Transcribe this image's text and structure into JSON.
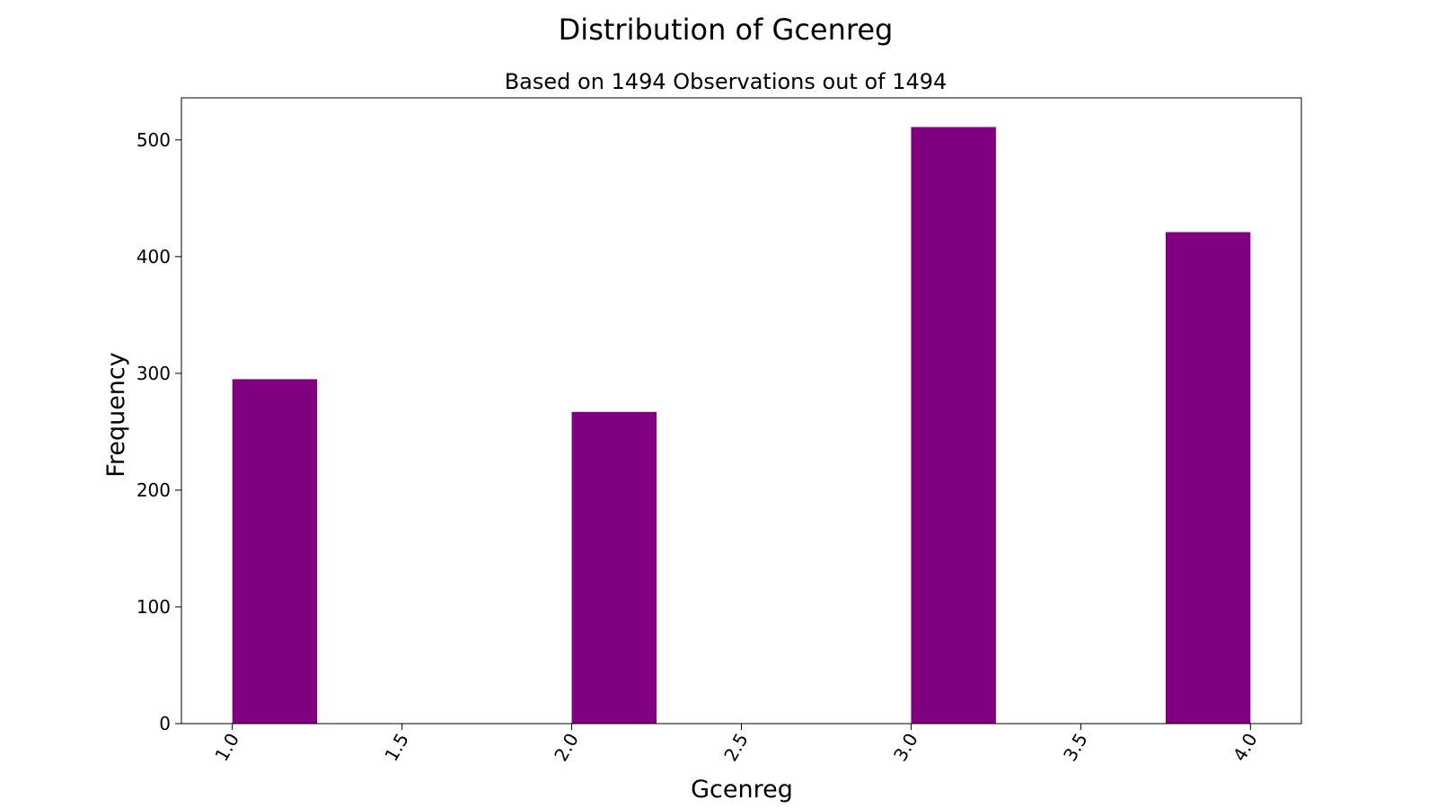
{
  "chart_data": {
    "type": "bar",
    "title": "Distribution of Gcenreg",
    "subtitle": "Based on 1494 Observations out of 1494",
    "xlabel": "Gcenreg",
    "ylabel": "Frequency",
    "bar_color": "#800080",
    "xlim": [
      0.85,
      4.15
    ],
    "ylim": [
      0,
      536
    ],
    "x_ticks": [
      1.0,
      1.5,
      2.0,
      2.5,
      3.0,
      3.5,
      4.0
    ],
    "x_tick_labels": [
      "1.0",
      "1.5",
      "2.0",
      "2.5",
      "3.0",
      "3.5",
      "4.0"
    ],
    "y_ticks": [
      0,
      100,
      200,
      300,
      400,
      500
    ],
    "y_tick_labels": [
      "0",
      "100",
      "200",
      "300",
      "400",
      "500"
    ],
    "bars": [
      {
        "x0": 1.0,
        "x1": 1.25,
        "value": 295
      },
      {
        "x0": 2.0,
        "x1": 2.25,
        "value": 267
      },
      {
        "x0": 3.0,
        "x1": 3.25,
        "value": 511
      },
      {
        "x0": 3.75,
        "x1": 4.0,
        "value": 421
      }
    ],
    "grid": false,
    "legend": "none"
  }
}
